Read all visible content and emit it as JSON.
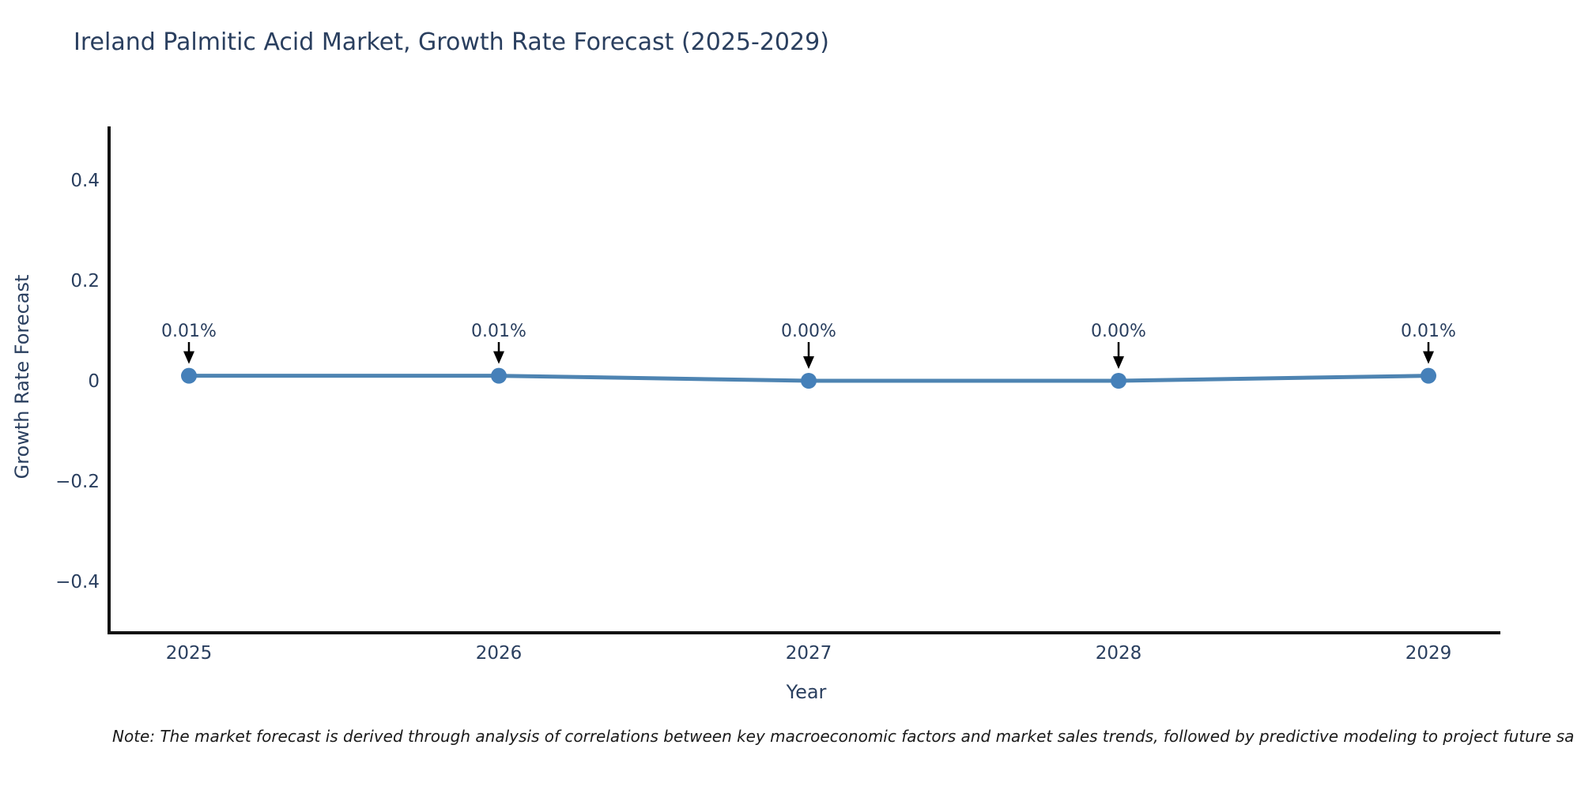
{
  "note": "Note: The market forecast is derived through analysis of correlations between key macroeconomic factors and market sales trends, followed by predictive modeling to project future sa",
  "chart_data": {
    "type": "line",
    "title": "Ireland Palmitic Acid Market, Growth Rate Forecast (2025-2029)",
    "xlabel": "Year",
    "ylabel": "Growth Rate Forecast",
    "x": [
      "2025",
      "2026",
      "2027",
      "2028",
      "2029"
    ],
    "values": [
      0.01,
      0.01,
      0.0,
      0.0,
      0.01
    ],
    "point_labels": [
      "0.01%",
      "0.01%",
      "0.00%",
      "0.00%",
      "0.01%"
    ],
    "yticks": [
      0.4,
      0.2,
      0,
      -0.2,
      -0.4
    ],
    "ytick_labels": [
      "0.4",
      "0.2",
      "0",
      "−0.2",
      "−0.4"
    ],
    "ylim": [
      -0.5,
      0.51
    ],
    "grid": false,
    "legend": "none",
    "annotations": "value labels with downward arrows above each point",
    "colors": {
      "text": "#2a3f5f",
      "line": "#4e84b2",
      "marker": "#4580b9",
      "axis": "#111111",
      "arrow": "#000000"
    }
  }
}
